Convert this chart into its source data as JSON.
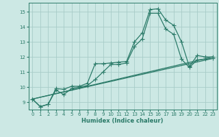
{
  "xlabel": "Humidex (Indice chaleur)",
  "xlim": [
    -0.5,
    23.5
  ],
  "ylim": [
    8.5,
    15.6
  ],
  "xticks": [
    0,
    1,
    2,
    3,
    4,
    5,
    6,
    7,
    8,
    9,
    10,
    11,
    12,
    13,
    14,
    15,
    16,
    17,
    18,
    19,
    20,
    21,
    22,
    23
  ],
  "yticks": [
    9,
    10,
    11,
    12,
    13,
    14,
    15
  ],
  "bg_color": "#cce8e4",
  "line_color": "#2a7a68",
  "grid_color": "#a8ccc8",
  "lines": [
    {
      "x": [
        0,
        1,
        2,
        3,
        4,
        5,
        6,
        7,
        8,
        9,
        10,
        11,
        12,
        13,
        14,
        15,
        16,
        17,
        18,
        19,
        20,
        21,
        22,
        23
      ],
      "y": [
        9.2,
        8.7,
        8.85,
        9.9,
        9.85,
        10.05,
        10.05,
        10.25,
        11.55,
        11.55,
        11.6,
        11.65,
        11.7,
        13.0,
        13.6,
        15.15,
        15.2,
        14.45,
        14.1,
        13.0,
        11.35,
        12.1,
        12.0,
        12.0
      ]
    },
    {
      "x": [
        0,
        1,
        2,
        3,
        4,
        5,
        6,
        7,
        8,
        9,
        10,
        11,
        12,
        13,
        14,
        15,
        16,
        17,
        18,
        19,
        20,
        21,
        22,
        23
      ],
      "y": [
        9.2,
        8.7,
        8.85,
        9.8,
        9.5,
        9.9,
        10.0,
        10.1,
        10.5,
        11.0,
        11.5,
        11.5,
        11.6,
        12.7,
        13.2,
        14.9,
        14.9,
        13.85,
        13.5,
        11.85,
        11.3,
        11.8,
        11.85,
        11.9
      ]
    },
    {
      "x": [
        0,
        23
      ],
      "y": [
        9.2,
        12.0
      ]
    },
    {
      "x": [
        0,
        23
      ],
      "y": [
        9.2,
        11.9
      ]
    }
  ]
}
